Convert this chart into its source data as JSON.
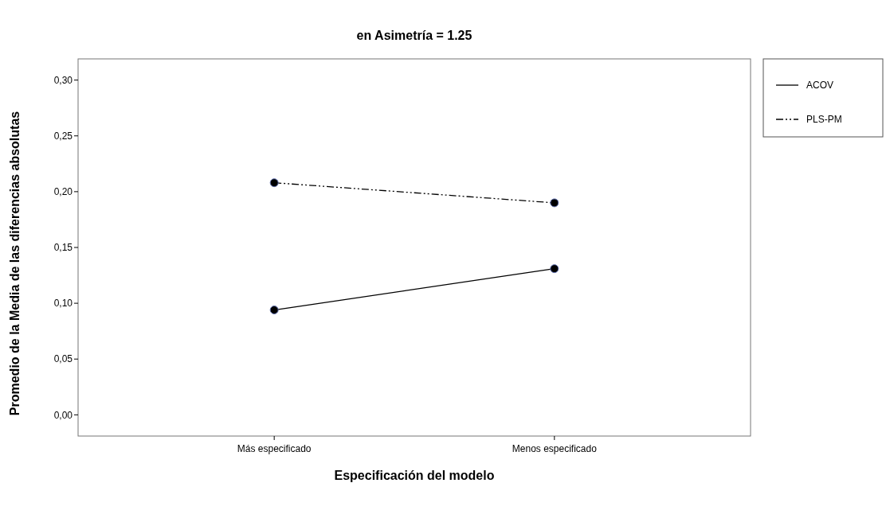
{
  "chart_data": {
    "type": "line",
    "title": "en Asimetría = 1.25",
    "xlabel": "Especificación del modelo",
    "ylabel": "Promedio de la Media de las diferencias absolutas",
    "categories": [
      "Más especificado",
      "Menos especificado"
    ],
    "series": [
      {
        "name": "ACOV",
        "color": "#000000",
        "values": [
          0.094,
          0.131
        ],
        "line_style": "solid"
      },
      {
        "name": "PLS-PM",
        "color": "#000000",
        "values": [
          0.208,
          0.19
        ],
        "line_style": "dashed"
      }
    ],
    "ylim": [
      -0.019,
      0.319
    ],
    "yticks": [
      {
        "value": 0,
        "label": "0,00"
      },
      {
        "value": 0.05,
        "label": "0,05"
      },
      {
        "value": 0.1,
        "label": "0,10"
      },
      {
        "value": 0.15,
        "label": "0,15"
      },
      {
        "value": 0.2,
        "label": "0,20"
      },
      {
        "value": 0.25,
        "label": "0,25"
      },
      {
        "value": 0.3,
        "label": "0,30"
      }
    ],
    "grid": false,
    "legend": "top right",
    "marker": "circle"
  }
}
